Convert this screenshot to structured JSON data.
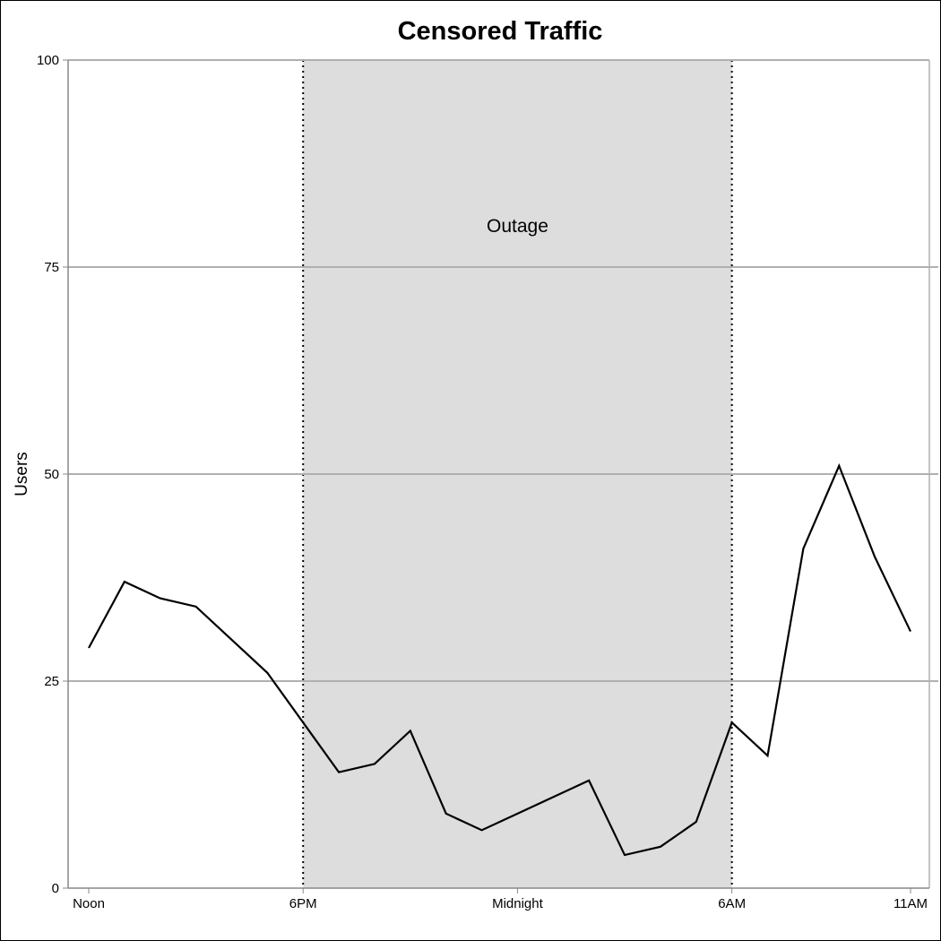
{
  "chart_data": {
    "type": "line",
    "title": "Censored Traffic",
    "xlabel": "",
    "ylabel": "Users",
    "ylim": [
      0,
      100
    ],
    "yticks": [
      0,
      25,
      50,
      75,
      100
    ],
    "x": [
      0,
      1,
      2,
      3,
      4,
      5,
      6,
      7,
      8,
      9,
      10,
      11,
      12,
      13,
      14,
      15,
      16,
      17,
      18,
      19,
      20,
      21,
      22,
      23
    ],
    "xlim": [
      0,
      23
    ],
    "xticks": [
      {
        "x": 0,
        "label": "Noon"
      },
      {
        "x": 6,
        "label": "6PM"
      },
      {
        "x": 12,
        "label": "Midnight"
      },
      {
        "x": 18,
        "label": "6AM"
      },
      {
        "x": 23,
        "label": "11AM"
      }
    ],
    "series": [
      {
        "values": [
          29,
          37,
          35,
          34,
          30,
          26,
          20,
          14,
          15,
          19,
          9,
          7,
          9,
          11,
          13,
          4,
          5,
          8,
          20,
          16,
          41,
          51,
          40,
          31
        ]
      }
    ],
    "shaded_region": {
      "x_start": 6,
      "x_end": 18,
      "label": "Outage",
      "label_y": 80
    },
    "grid": "horizontal",
    "colors": {
      "line": "#000000",
      "shade": "#dddddd",
      "grid": "#b0b0b0"
    }
  }
}
